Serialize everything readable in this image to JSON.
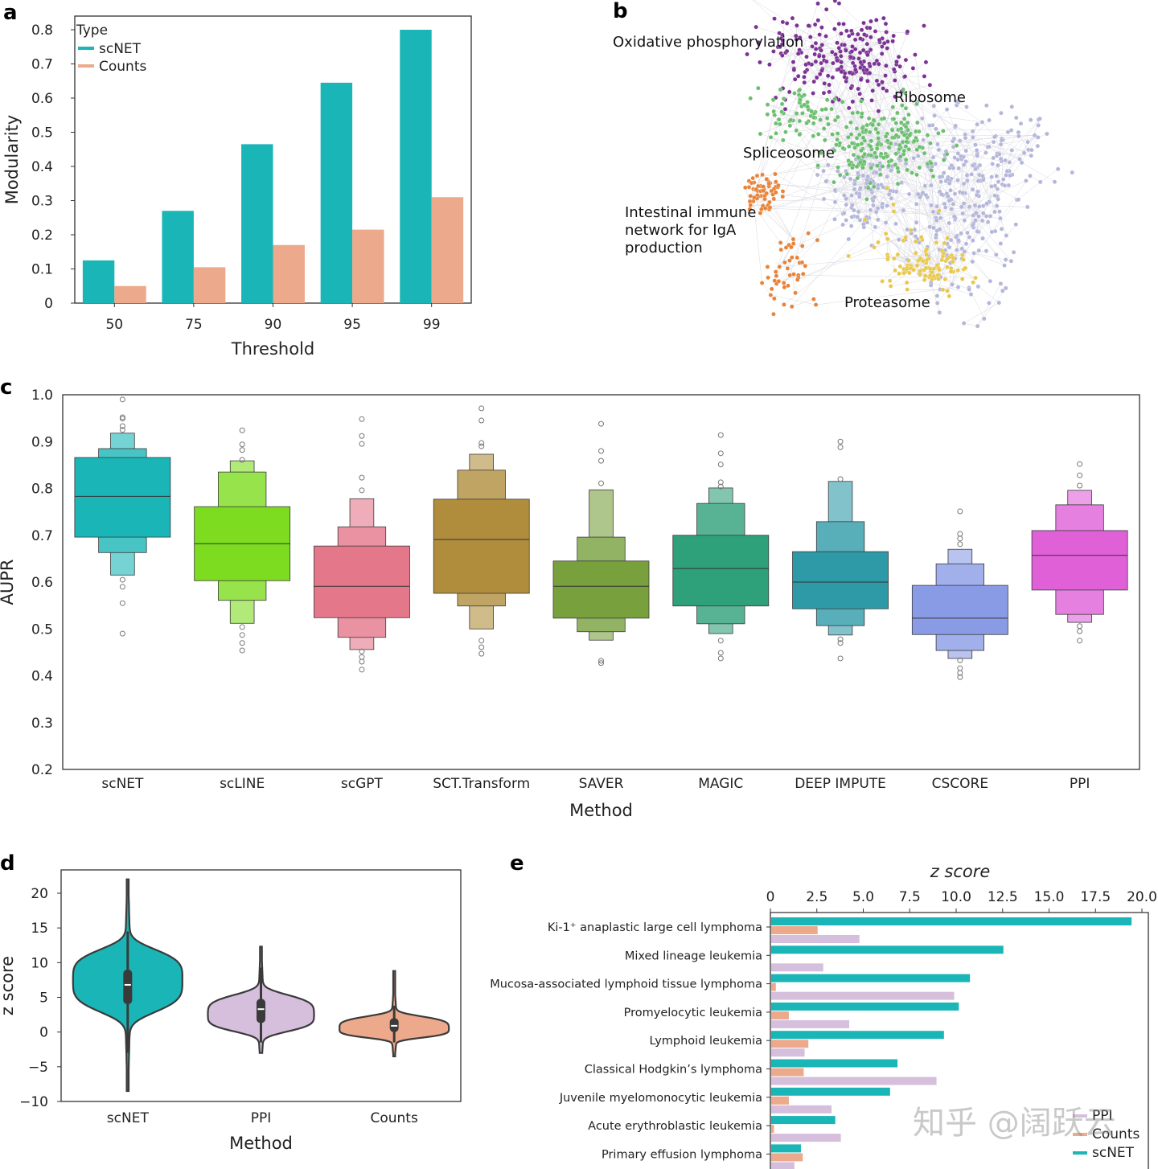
{
  "panel_letters": {
    "a": "a",
    "b": "b",
    "c": "c",
    "d": "d",
    "e": "e"
  },
  "watermark": "知乎 @阔跃云",
  "chart_data": [
    {
      "panel": "a",
      "type": "bar",
      "xlabel": "Threshold",
      "ylabel": "Modularity",
      "categories": [
        "50",
        "75",
        "90",
        "95",
        "99"
      ],
      "ylim": [
        0,
        0.8
      ],
      "yticks": [
        "0",
        "0.1",
        "0.2",
        "0.3",
        "0.4",
        "0.5",
        "0.6",
        "0.7",
        "0.8"
      ],
      "legend": {
        "title": "Type",
        "position": "top-left"
      },
      "series": [
        {
          "name": "scNET",
          "color": "#1ab5b6",
          "values": [
            0.125,
            0.27,
            0.465,
            0.645,
            0.8
          ]
        },
        {
          "name": "Counts",
          "color": "#eda98b",
          "values": [
            0.05,
            0.105,
            0.17,
            0.215,
            0.31
          ]
        }
      ]
    },
    {
      "panel": "b",
      "type": "network",
      "modules": [
        {
          "label": "Oxidative phosphorylation",
          "color": "#7b3294"
        },
        {
          "label": "Ribosome",
          "color": "#b4b7d9"
        },
        {
          "label": "Spliceosome",
          "color": "#6dbf70"
        },
        {
          "label": "Intestinal immune\nnetwork for IgA\nproduction",
          "label_lines": [
            "Intestinal immune",
            "network for IgA",
            "production"
          ],
          "color": "#e8843a"
        },
        {
          "label": "Proteasome",
          "color": "#e8c94f"
        }
      ]
    },
    {
      "panel": "c",
      "type": "boxen",
      "xlabel": "Method",
      "ylabel": "AUPR",
      "ylim": [
        0.2,
        1.0
      ],
      "yticks": [
        "0.2",
        "0.3",
        "0.4",
        "0.5",
        "0.6",
        "0.7",
        "0.8",
        "0.9",
        "1.0"
      ],
      "series": [
        {
          "name": "scNET",
          "color": "#1ab5b6",
          "median": 0.783,
          "levels": [
            [
              0.696,
              0.866
            ],
            [
              0.663,
              0.885
            ],
            [
              0.615,
              0.918
            ]
          ],
          "outliers": [
            0.99,
            0.952,
            0.949,
            0.933,
            0.925,
            0.605,
            0.59,
            0.555,
            0.49
          ]
        },
        {
          "name": "scLINE",
          "color": "#7ddc1f",
          "median": 0.682,
          "levels": [
            [
              0.603,
              0.761
            ],
            [
              0.561,
              0.835
            ],
            [
              0.512,
              0.859
            ]
          ],
          "outliers": [
            0.924,
            0.894,
            0.882,
            0.861,
            0.504,
            0.487,
            0.47,
            0.454
          ]
        },
        {
          "name": "scGPT",
          "color": "#e5778b",
          "median": 0.591,
          "levels": [
            [
              0.524,
              0.677
            ],
            [
              0.482,
              0.718
            ],
            [
              0.456,
              0.778
            ]
          ],
          "outliers": [
            0.948,
            0.912,
            0.895,
            0.823,
            0.796,
            0.452,
            0.44,
            0.43,
            0.413
          ]
        },
        {
          "name": "SCT.Transform",
          "color": "#b08d3d",
          "median": 0.691,
          "levels": [
            [
              0.576,
              0.777
            ],
            [
              0.549,
              0.839
            ],
            [
              0.5,
              0.873
            ]
          ],
          "outliers": [
            0.971,
            0.945,
            0.897,
            0.89,
            0.475,
            0.461,
            0.447
          ]
        },
        {
          "name": "SAVER",
          "color": "#78a03d",
          "median": 0.591,
          "levels": [
            [
              0.523,
              0.645
            ],
            [
              0.494,
              0.696
            ],
            [
              0.476,
              0.797
            ]
          ],
          "outliers": [
            0.938,
            0.88,
            0.859,
            0.811,
            0.432,
            0.427
          ]
        },
        {
          "name": "MAGIC",
          "color": "#2ea07a",
          "median": 0.629,
          "levels": [
            [
              0.549,
              0.7
            ],
            [
              0.511,
              0.768
            ],
            [
              0.49,
              0.801
            ]
          ],
          "outliers": [
            0.914,
            0.875,
            0.851,
            0.813,
            0.804,
            0.475,
            0.449,
            0.437
          ]
        },
        {
          "name": "DEEP IMPUTE",
          "color": "#2e9aa8",
          "median": 0.6,
          "levels": [
            [
              0.543,
              0.665
            ],
            [
              0.507,
              0.729
            ],
            [
              0.487,
              0.815
            ]
          ],
          "outliers": [
            0.9,
            0.888,
            0.82,
            0.478,
            0.47,
            0.437
          ]
        },
        {
          "name": "CSCORE",
          "color": "#8a9be6",
          "median": 0.523,
          "levels": [
            [
              0.488,
              0.593
            ],
            [
              0.454,
              0.639
            ],
            [
              0.437,
              0.67
            ]
          ],
          "outliers": [
            0.751,
            0.703,
            0.693,
            0.681,
            0.433,
            0.416,
            0.406,
            0.397
          ]
        },
        {
          "name": "PPI",
          "color": "#e060d8",
          "median": 0.657,
          "levels": [
            [
              0.583,
              0.71
            ],
            [
              0.531,
              0.765
            ],
            [
              0.514,
              0.796
            ]
          ],
          "outliers": [
            0.852,
            0.828,
            0.806,
            0.506,
            0.495,
            0.475
          ]
        }
      ]
    },
    {
      "panel": "d",
      "type": "violin",
      "xlabel": "Method",
      "ylabel": "z score",
      "ylim": [
        -10,
        22
      ],
      "yticks": [
        "−10",
        "−5",
        "0",
        "5",
        "10",
        "15",
        "20"
      ],
      "series": [
        {
          "name": "scNET",
          "color": "#1ab5b6",
          "min": -8.5,
          "max": 22,
          "whisker": [
            -3,
            14.5
          ],
          "q1": 4,
          "q3": 9,
          "median": 6.8,
          "peak": 7.5,
          "spread": [
            4.2,
            4.0
          ]
        },
        {
          "name": "PPI",
          "color": "#d5bfdc",
          "min": -3,
          "max": 12.3,
          "whisker": [
            -1.5,
            9.3
          ],
          "q1": 1.3,
          "q3": 4.8,
          "median": 3.3,
          "peak": 2.5,
          "spread": [
            2.2,
            2.6
          ]
        },
        {
          "name": "Counts",
          "color": "#eda98b",
          "min": -3.5,
          "max": 8.8,
          "whisker": [
            -1.5,
            3.8
          ],
          "q1": 0,
          "q3": 2,
          "median": 0.9,
          "peak": 0.5,
          "spread": [
            1.2,
            1.6
          ]
        }
      ]
    },
    {
      "panel": "e",
      "type": "hbar",
      "xlabel": "z score",
      "xlim": [
        0,
        20
      ],
      "xticks": [
        "0",
        "2.5",
        "5.0",
        "7.5",
        "10.0",
        "12.5",
        "15.0",
        "17.5",
        "20.0"
      ],
      "legend": {
        "position": "bottom-right"
      },
      "categories": [
        "Ki-1⁺ anaplastic large cell lymphoma",
        "Mixed lineage leukemia",
        "Mucosa-associated lymphoid tissue lymphoma",
        "Promyelocytic leukemia",
        "Lymphoid leukemia",
        "Classical Hodgkin’s lymphoma",
        "Juvenile myelomonocytic leukemia",
        "Acute erythroblastic leukemia",
        "Primary effusion lymphoma"
      ],
      "series": [
        {
          "name": "scNET",
          "color": "#1ab5b6",
          "values": [
            19.4,
            12.5,
            10.7,
            10.1,
            9.3,
            6.8,
            6.4,
            3.45,
            1.6
          ]
        },
        {
          "name": "Counts",
          "color": "#eda98b",
          "values": [
            2.5,
            0,
            0.25,
            0.95,
            2.0,
            1.75,
            0.95,
            0.15,
            1.7
          ]
        },
        {
          "name": "PPI",
          "color": "#d5bfdc",
          "values": [
            4.75,
            2.8,
            9.85,
            4.2,
            1.8,
            8.9,
            3.25,
            3.75,
            1.25
          ]
        }
      ]
    }
  ]
}
